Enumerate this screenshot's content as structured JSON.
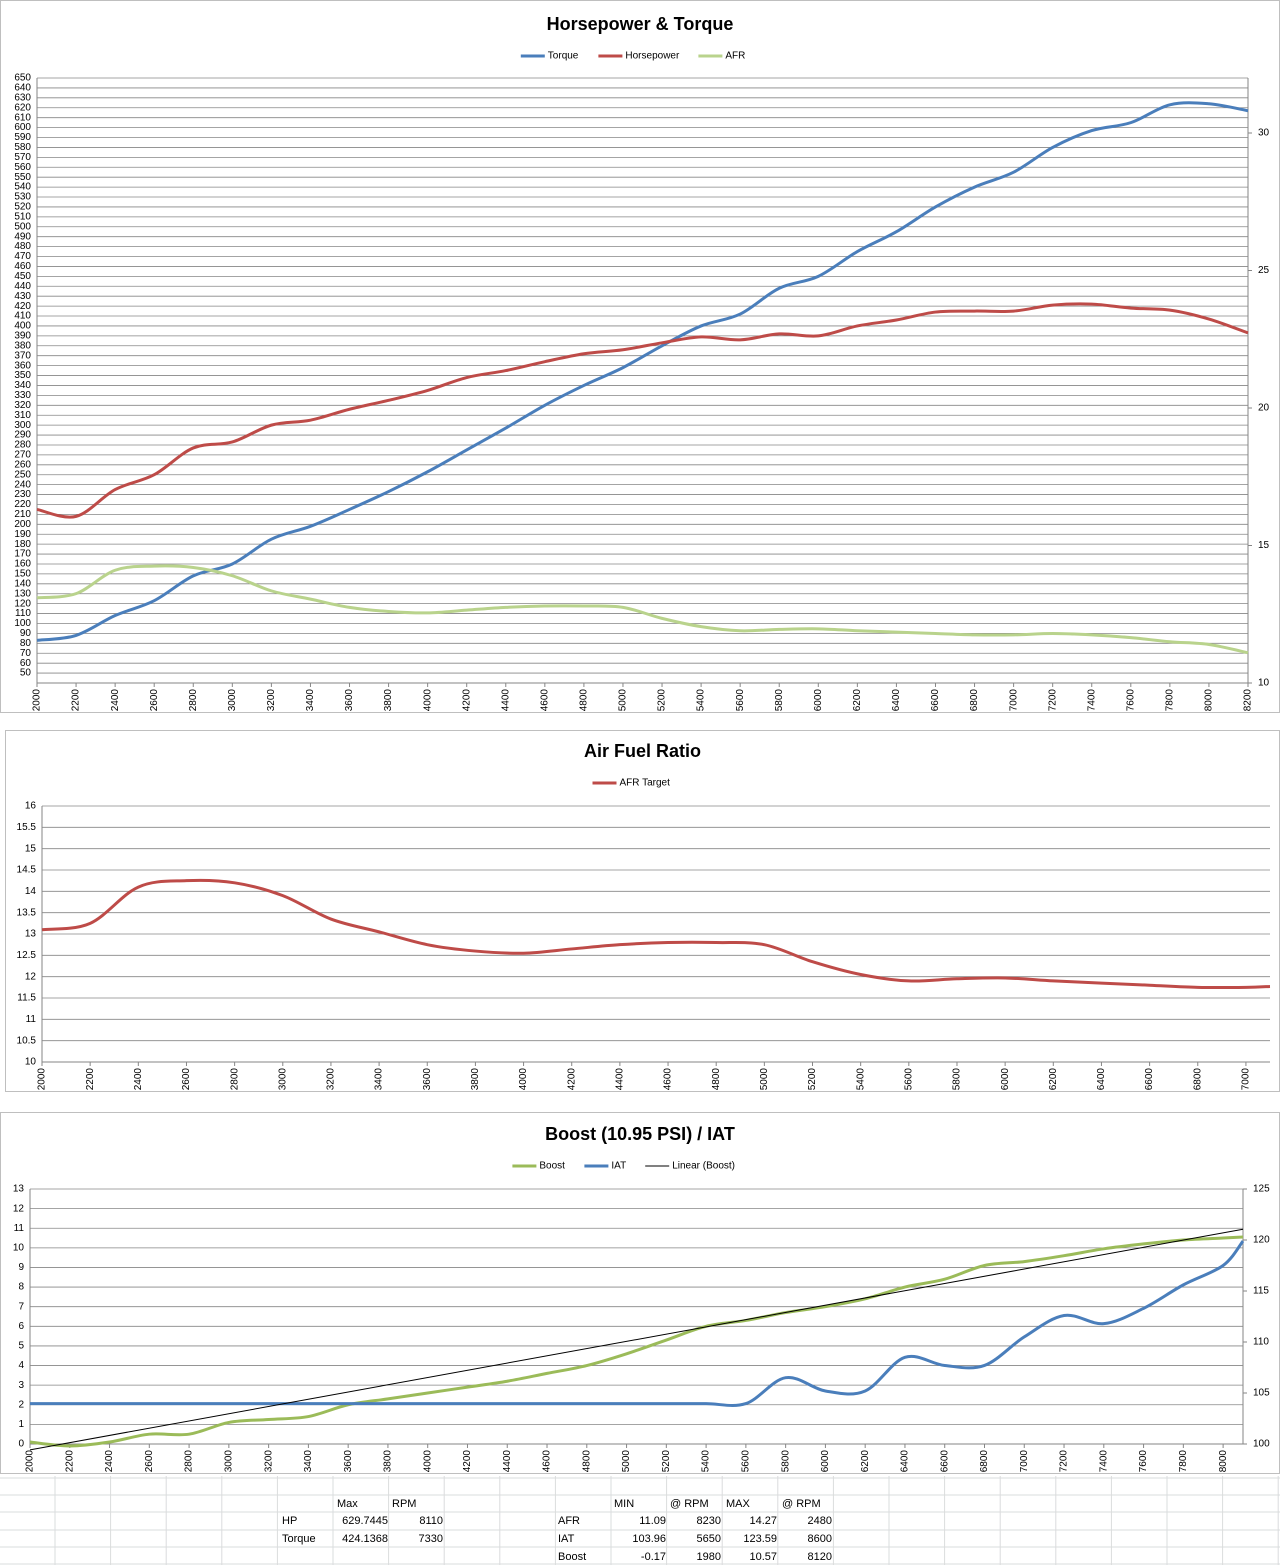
{
  "chart_data": [
    {
      "type": "line",
      "title": "Horsepower & Torque",
      "x": [
        2000,
        2200,
        2400,
        2600,
        2800,
        3000,
        3200,
        3400,
        3600,
        3800,
        4000,
        4200,
        4400,
        4600,
        4800,
        5000,
        5200,
        5400,
        5600,
        5800,
        6000,
        6200,
        6400,
        6600,
        6800,
        7000,
        7200,
        7400,
        7600,
        7800,
        8000,
        8200
      ],
      "xlim": [
        2000,
        8200
      ],
      "xticks": [
        2000,
        2200,
        2400,
        2600,
        2800,
        3000,
        3200,
        3400,
        3600,
        3800,
        4000,
        4200,
        4400,
        4600,
        4800,
        5000,
        5200,
        5400,
        5600,
        5800,
        6000,
        6200,
        6400,
        6600,
        6800,
        7000,
        7200,
        7400,
        7600,
        7800,
        8000,
        8200
      ],
      "ylim": [
        40,
        650
      ],
      "yticks": [
        50,
        60,
        70,
        80,
        90,
        100,
        110,
        120,
        130,
        140,
        150,
        160,
        170,
        180,
        190,
        200,
        210,
        220,
        230,
        240,
        250,
        260,
        270,
        280,
        290,
        300,
        310,
        320,
        330,
        340,
        350,
        360,
        370,
        380,
        390,
        400,
        410,
        420,
        430,
        440,
        450,
        460,
        470,
        480,
        490,
        500,
        510,
        520,
        530,
        540,
        550,
        560,
        570,
        580,
        590,
        600,
        610,
        620,
        630,
        640,
        650
      ],
      "y2lim": [
        10,
        32
      ],
      "y2ticks": [
        10,
        15,
        20,
        25,
        30
      ],
      "grid": true,
      "series": [
        {
          "name": "Torque",
          "color": "#4a7ebb",
          "values": [
            83,
            88,
            108,
            123,
            148,
            160,
            185,
            198,
            215,
            233,
            253,
            275,
            297,
            320,
            340,
            358,
            380,
            400,
            412,
            438,
            450,
            475,
            495,
            520,
            540,
            555,
            580,
            597,
            605,
            623,
            624,
            617
          ]
        },
        {
          "name": "Horsepower",
          "color": "#be4b48",
          "values": [
            215,
            208,
            235,
            250,
            277,
            283,
            300,
            305,
            316,
            325,
            335,
            348,
            355,
            364,
            372,
            376,
            383,
            389,
            386,
            392,
            390,
            400,
            406,
            414,
            415,
            415,
            421,
            422,
            418,
            416,
            407,
            393
          ]
        },
        {
          "name": "AFR",
          "color": "#b9d38c",
          "axis": "y2",
          "values": [
            13.1,
            13.25,
            14.1,
            14.25,
            14.2,
            13.9,
            13.35,
            13.05,
            12.75,
            12.6,
            12.55,
            12.65,
            12.75,
            12.8,
            12.8,
            12.75,
            12.35,
            12.05,
            11.9,
            11.95,
            11.97,
            11.9,
            11.85,
            11.8,
            11.75,
            11.75,
            11.8,
            11.75,
            11.65,
            11.5,
            11.4,
            11.1
          ]
        }
      ]
    },
    {
      "type": "line",
      "title": "Air Fuel Ratio",
      "x": [
        2000,
        2200,
        2400,
        2600,
        2800,
        3000,
        3200,
        3400,
        3600,
        3800,
        4000,
        4200,
        4400,
        4600,
        4800,
        5000,
        5200,
        5400,
        5600,
        5800,
        6000,
        6200,
        6400,
        6600,
        6800,
        7000,
        7100
      ],
      "xlim": [
        2000,
        7100
      ],
      "xticks": [
        2000,
        2200,
        2400,
        2600,
        2800,
        3000,
        3200,
        3400,
        3600,
        3800,
        4000,
        4200,
        4400,
        4600,
        4800,
        5000,
        5200,
        5400,
        5600,
        5800,
        6000,
        6200,
        6400,
        6600,
        6800,
        7000
      ],
      "ylim": [
        10,
        16
      ],
      "yticks": [
        10,
        10.5,
        11,
        11.5,
        12,
        12.5,
        13,
        13.5,
        14,
        14.5,
        15,
        15.5,
        16
      ],
      "grid": true,
      "series": [
        {
          "name": "AFR Target",
          "color": "#be4b48",
          "values": [
            13.1,
            13.25,
            14.1,
            14.25,
            14.2,
            13.9,
            13.35,
            13.05,
            12.75,
            12.6,
            12.55,
            12.65,
            12.75,
            12.8,
            12.8,
            12.75,
            12.35,
            12.05,
            11.9,
            11.95,
            11.97,
            11.9,
            11.85,
            11.8,
            11.75,
            11.75,
            11.77
          ]
        }
      ]
    },
    {
      "type": "line",
      "title": "Boost (10.95 PSI) / IAT",
      "x": [
        2000,
        2200,
        2400,
        2600,
        2800,
        3000,
        3200,
        3400,
        3600,
        3800,
        4000,
        4200,
        4400,
        4600,
        4800,
        5000,
        5200,
        5400,
        5600,
        5800,
        6000,
        6200,
        6400,
        6600,
        6800,
        7000,
        7200,
        7400,
        7600,
        7800,
        8000,
        8100
      ],
      "xlim": [
        2000,
        8100
      ],
      "xticks": [
        2000,
        2200,
        2400,
        2600,
        2800,
        3000,
        3200,
        3400,
        3600,
        3800,
        4000,
        4200,
        4400,
        4600,
        4800,
        5000,
        5200,
        5400,
        5600,
        5800,
        6000,
        6200,
        6400,
        6600,
        6800,
        7000,
        7200,
        7400,
        7600,
        7800,
        8000
      ],
      "ylim": [
        0,
        13
      ],
      "yticks": [
        0,
        1,
        2,
        3,
        4,
        5,
        6,
        7,
        8,
        9,
        10,
        11,
        12,
        13
      ],
      "y2lim": [
        100,
        125
      ],
      "y2ticks": [
        100,
        105,
        110,
        115,
        120,
        125
      ],
      "grid": true,
      "series": [
        {
          "name": "Boost",
          "color": "#9bbb59",
          "values": [
            0.1,
            -0.1,
            0.1,
            0.5,
            0.5,
            1.1,
            1.25,
            1.4,
            2.0,
            2.3,
            2.6,
            2.9,
            3.2,
            3.6,
            4.0,
            4.6,
            5.3,
            6.0,
            6.3,
            6.7,
            7.0,
            7.4,
            8.0,
            8.4,
            9.1,
            9.3,
            9.6,
            9.95,
            10.2,
            10.4,
            10.5,
            10.55
          ]
        },
        {
          "name": "IAT",
          "color": "#4a7ebb",
          "axis": "y2",
          "values": [
            103.96,
            103.96,
            103.96,
            103.96,
            103.96,
            103.96,
            103.96,
            103.96,
            103.96,
            103.96,
            103.96,
            103.96,
            103.96,
            103.96,
            103.96,
            103.96,
            103.96,
            103.96,
            103.96,
            106.5,
            105.2,
            105.2,
            108.5,
            107.7,
            107.7,
            110.5,
            112.6,
            111.8,
            113.3,
            115.6,
            117.5,
            119.9
          ]
        },
        {
          "name": "Linear (Boost)",
          "color": "#000000",
          "x": [
            2000,
            8100
          ],
          "values": [
            -0.3,
            10.95
          ]
        }
      ]
    }
  ],
  "table": {
    "left": {
      "header": [
        "Max",
        "RPM"
      ],
      "rows": [
        [
          "HP",
          629.7445,
          8110
        ],
        [
          "Torque",
          424.1368,
          7330
        ]
      ]
    },
    "right": {
      "header": [
        "MIN",
        "@ RPM",
        "MAX",
        "@ RPM"
      ],
      "rows": [
        [
          "AFR",
          11.09,
          8230,
          14.27,
          2480
        ],
        [
          "IAT",
          103.96,
          5650,
          123.59,
          8600
        ],
        [
          "Boost",
          -0.17,
          1980,
          10.57,
          8120
        ]
      ]
    }
  }
}
